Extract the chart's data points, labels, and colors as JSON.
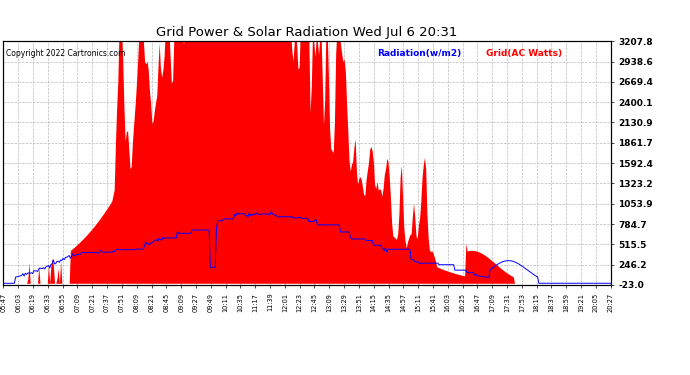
{
  "title": "Grid Power & Solar Radiation Wed Jul 6 20:31",
  "copyright": "Copyright 2022 Cartronics.com",
  "legend_radiation": "Radiation(w/m2)",
  "legend_grid": "Grid(AC Watts)",
  "ylabel_right_ticks": [
    -23.0,
    246.2,
    515.5,
    784.7,
    1053.9,
    1323.2,
    1592.4,
    1861.7,
    2130.9,
    2400.1,
    2669.4,
    2938.6,
    3207.8
  ],
  "ymin": -23.0,
  "ymax": 3207.8,
  "background_color": "#ffffff",
  "grid_color": "#bbbbbb",
  "red_fill_color": "#ff0000",
  "blue_line_color": "#0000ff",
  "title_color": "#000000",
  "copyright_color": "#000000",
  "time_labels": [
    "05:47",
    "06:03",
    "06:19",
    "06:33",
    "06:55",
    "07:09",
    "07:21",
    "07:37",
    "07:51",
    "08:09",
    "08:21",
    "08:45",
    "09:09",
    "09:27",
    "09:49",
    "10:11",
    "10:35",
    "11:17",
    "11:39",
    "12:01",
    "12:23",
    "12:45",
    "13:09",
    "13:29",
    "13:51",
    "14:15",
    "14:35",
    "14:57",
    "15:11",
    "15:41",
    "16:03",
    "16:25",
    "16:47",
    "17:09",
    "17:31",
    "17:53",
    "18:15",
    "18:37",
    "18:59",
    "19:21",
    "20:05",
    "20:27"
  ]
}
